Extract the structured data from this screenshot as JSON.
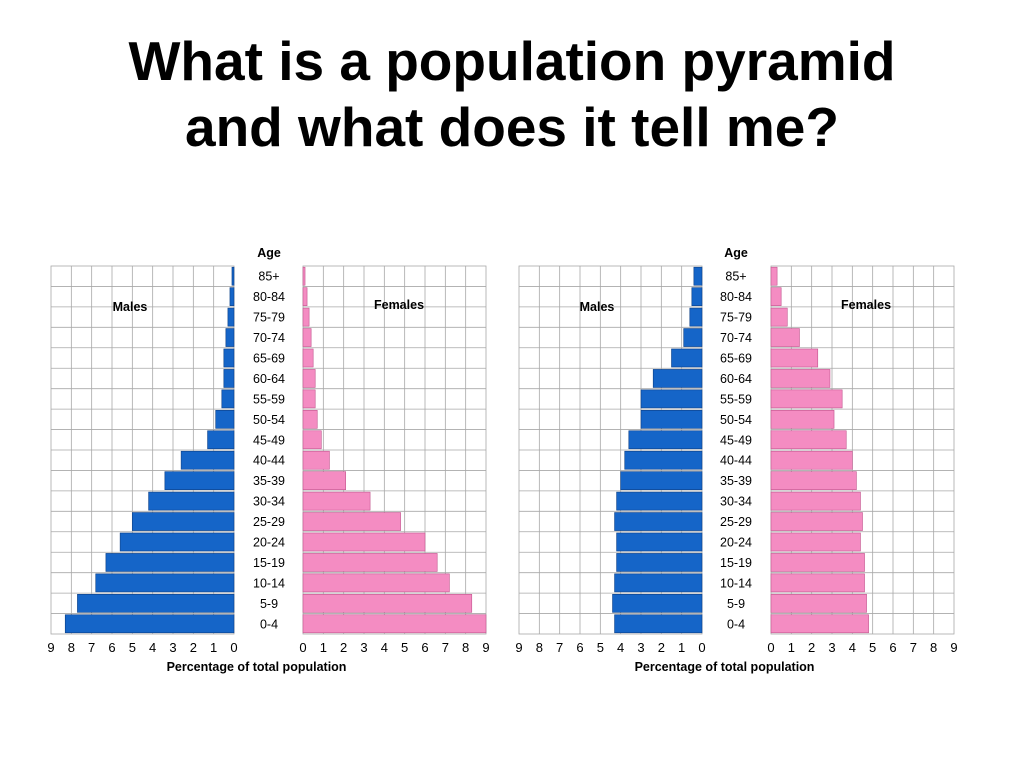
{
  "slide": {
    "title_line1": "What is a population pyramid",
    "title_line2": "and what does it tell me?"
  },
  "colors": {
    "male": "#1565c8",
    "female": "#f48cc2",
    "grid": "#a8a8a8",
    "text": "#000000"
  },
  "chart_data": [
    {
      "type": "bar",
      "orientation": "horizontal",
      "age_label": "Age",
      "categories": [
        "85+",
        "80-84",
        "75-79",
        "70-74",
        "65-69",
        "60-64",
        "55-59",
        "50-54",
        "45-49",
        "40-44",
        "35-39",
        "30-34",
        "25-29",
        "20-24",
        "15-19",
        "10-14",
        "5-9",
        "0-4"
      ],
      "series": [
        {
          "name": "Males",
          "values": [
            0.1,
            0.2,
            0.3,
            0.4,
            0.5,
            0.5,
            0.6,
            0.9,
            1.3,
            2.6,
            3.4,
            4.2,
            5.0,
            5.6,
            6.3,
            6.8,
            7.7,
            8.3
          ]
        },
        {
          "name": "Females",
          "values": [
            0.1,
            0.2,
            0.3,
            0.4,
            0.5,
            0.6,
            0.6,
            0.7,
            0.9,
            1.3,
            2.1,
            3.3,
            4.8,
            6.0,
            6.6,
            7.2,
            8.3,
            9.0
          ]
        }
      ],
      "xlabel": "Percentage of total population",
      "xticks": [
        "0",
        "1",
        "2",
        "3",
        "4",
        "5",
        "6",
        "7",
        "8",
        "9"
      ],
      "xlim": [
        0,
        9
      ],
      "grid": true
    },
    {
      "type": "bar",
      "orientation": "horizontal",
      "age_label": "Age",
      "categories": [
        "85+",
        "80-84",
        "75-79",
        "70-74",
        "65-69",
        "60-64",
        "55-59",
        "50-54",
        "45-49",
        "40-44",
        "35-39",
        "30-34",
        "25-29",
        "20-24",
        "15-19",
        "10-14",
        "5-9",
        "0-4"
      ],
      "series": [
        {
          "name": "Males",
          "values": [
            0.4,
            0.5,
            0.6,
            0.9,
            1.5,
            2.4,
            3.0,
            3.0,
            3.6,
            3.8,
            4.0,
            4.2,
            4.3,
            4.2,
            4.2,
            4.3,
            4.4,
            4.3
          ]
        },
        {
          "name": "Females",
          "values": [
            0.3,
            0.5,
            0.8,
            1.4,
            2.3,
            2.9,
            3.5,
            3.1,
            3.7,
            4.0,
            4.2,
            4.4,
            4.5,
            4.4,
            4.6,
            4.6,
            4.7,
            4.8
          ]
        }
      ],
      "xlabel": "Percentage of total population",
      "xticks": [
        "0",
        "1",
        "2",
        "3",
        "4",
        "5",
        "6",
        "7",
        "8",
        "9"
      ],
      "xlim": [
        0,
        9
      ],
      "grid": true
    }
  ]
}
